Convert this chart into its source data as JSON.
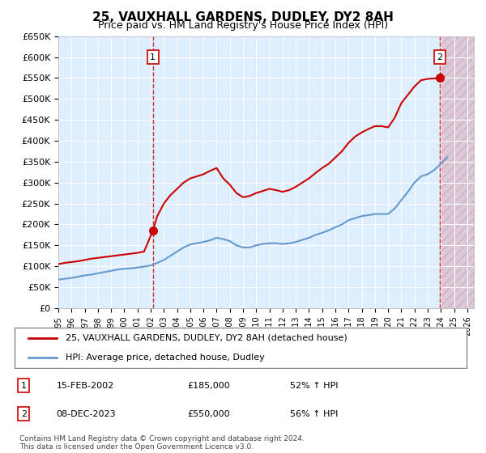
{
  "title": "25, VAUXHALL GARDENS, DUDLEY, DY2 8AH",
  "subtitle": "Price paid vs. HM Land Registry's House Price Index (HPI)",
  "ylabel_ticks": [
    "£0",
    "£50K",
    "£100K",
    "£150K",
    "£200K",
    "£250K",
    "£300K",
    "£350K",
    "£400K",
    "£450K",
    "£500K",
    "£550K",
    "£600K",
    "£650K"
  ],
  "ylim": [
    0,
    650000
  ],
  "ytick_vals": [
    0,
    50000,
    100000,
    150000,
    200000,
    250000,
    300000,
    350000,
    400000,
    450000,
    500000,
    550000,
    600000,
    650000
  ],
  "xlim_start": 1995.0,
  "xlim_end": 2026.5,
  "xtick_years": [
    1995,
    1996,
    1997,
    1998,
    1999,
    2000,
    2001,
    2002,
    2003,
    2004,
    2005,
    2006,
    2007,
    2008,
    2009,
    2010,
    2011,
    2012,
    2013,
    2014,
    2015,
    2016,
    2017,
    2018,
    2019,
    2020,
    2021,
    2022,
    2023,
    2024,
    2025,
    2026
  ],
  "hpi_x": [
    1995.0,
    1995.5,
    1996.0,
    1996.5,
    1997.0,
    1997.5,
    1998.0,
    1998.5,
    1999.0,
    1999.5,
    2000.0,
    2000.5,
    2001.0,
    2001.5,
    2002.0,
    2002.5,
    2003.0,
    2003.5,
    2004.0,
    2004.5,
    2005.0,
    2005.5,
    2006.0,
    2006.5,
    2007.0,
    2007.5,
    2008.0,
    2008.5,
    2009.0,
    2009.5,
    2010.0,
    2010.5,
    2011.0,
    2011.5,
    2012.0,
    2012.5,
    2013.0,
    2013.5,
    2014.0,
    2014.5,
    2015.0,
    2015.5,
    2016.0,
    2016.5,
    2017.0,
    2017.5,
    2018.0,
    2018.5,
    2019.0,
    2019.5,
    2020.0,
    2020.5,
    2021.0,
    2021.5,
    2022.0,
    2022.5,
    2023.0,
    2023.5,
    2024.0,
    2024.5
  ],
  "hpi_y": [
    68000,
    70000,
    72000,
    75000,
    78000,
    80000,
    83000,
    86000,
    89000,
    92000,
    94000,
    95000,
    97000,
    99000,
    102000,
    108000,
    115000,
    125000,
    135000,
    145000,
    152000,
    155000,
    158000,
    162000,
    168000,
    165000,
    160000,
    150000,
    145000,
    145000,
    150000,
    153000,
    155000,
    155000,
    153000,
    155000,
    158000,
    163000,
    168000,
    175000,
    180000,
    186000,
    193000,
    200000,
    210000,
    215000,
    220000,
    222000,
    225000,
    225000,
    225000,
    238000,
    258000,
    278000,
    300000,
    315000,
    320000,
    330000,
    345000,
    360000
  ],
  "property_x": [
    1995.0,
    1995.5,
    1996.0,
    1996.5,
    1997.0,
    1997.5,
    1998.0,
    1998.5,
    1999.0,
    1999.5,
    2000.0,
    2000.5,
    2001.0,
    2001.5,
    2002.1667,
    2002.5,
    2003.0,
    2003.5,
    2004.0,
    2004.5,
    2005.0,
    2005.5,
    2006.0,
    2006.5,
    2007.0,
    2007.5,
    2008.0,
    2008.5,
    2009.0,
    2009.5,
    2010.0,
    2010.5,
    2011.0,
    2011.5,
    2012.0,
    2012.5,
    2013.0,
    2013.5,
    2014.0,
    2014.5,
    2015.0,
    2015.5,
    2016.0,
    2016.5,
    2017.0,
    2017.5,
    2018.0,
    2018.5,
    2019.0,
    2019.5,
    2020.0,
    2020.5,
    2021.0,
    2021.5,
    2022.0,
    2022.5,
    2023.0,
    2023.92,
    2024.0
  ],
  "property_y": [
    105000,
    108000,
    110000,
    112000,
    115000,
    118000,
    120000,
    122000,
    124000,
    126000,
    128000,
    130000,
    132000,
    135000,
    185000,
    220000,
    250000,
    270000,
    285000,
    300000,
    310000,
    315000,
    320000,
    328000,
    335000,
    310000,
    295000,
    275000,
    265000,
    268000,
    275000,
    280000,
    285000,
    282000,
    278000,
    282000,
    290000,
    300000,
    310000,
    323000,
    335000,
    345000,
    360000,
    375000,
    395000,
    410000,
    420000,
    428000,
    435000,
    435000,
    432000,
    455000,
    490000,
    510000,
    530000,
    545000,
    548000,
    550000,
    560000
  ],
  "transaction1_x": 2002.1667,
  "transaction1_y": 185000,
  "transaction1_label": "1",
  "transaction1_date": "15-FEB-2002",
  "transaction1_price": "£185,000",
  "transaction1_hpi": "52% ↑ HPI",
  "transaction2_x": 2023.92,
  "transaction2_y": 550000,
  "transaction2_label": "2",
  "transaction2_date": "08-DEC-2023",
  "transaction2_price": "£550,000",
  "transaction2_hpi": "56% ↑ HPI",
  "line1_color": "#cc0000",
  "line2_color": "#6699cc",
  "vline_color": "#cc0000",
  "chart_bg_color": "#ddeeff",
  "legend_line1": "25, VAUXHALL GARDENS, DUDLEY, DY2 8AH (detached house)",
  "legend_line2": "HPI: Average price, detached house, Dudley",
  "footer": "Contains HM Land Registry data © Crown copyright and database right 2024.\nThis data is licensed under the Open Government Licence v3.0.",
  "hatch_color": "#cc0000"
}
